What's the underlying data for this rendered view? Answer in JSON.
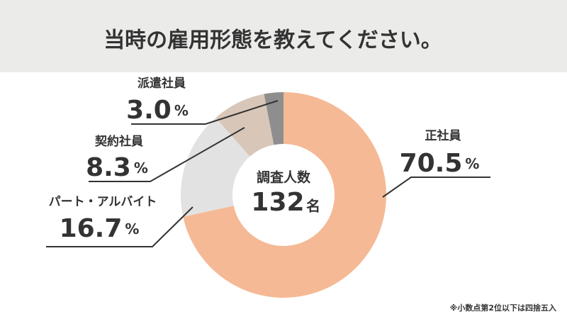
{
  "chart_data": {
    "type": "donut",
    "title": "当時の雇用形態を教えてください。",
    "center_label": "調査人数",
    "total": 132,
    "total_unit": "名",
    "categories": [
      "正社員",
      "パート・アルバイト",
      "契約社員",
      "派遣社員"
    ],
    "values": [
      70.5,
      16.7,
      8.3,
      3.0
    ],
    "value_labels": [
      "70.5",
      "16.7",
      "8.3",
      "3.0"
    ],
    "unit": "%",
    "colors": [
      "#f5b995",
      "#e2e2e2",
      "#d8c7b9",
      "#8e8e8e"
    ],
    "note": "※小数点第2位以下は四捨五入"
  }
}
